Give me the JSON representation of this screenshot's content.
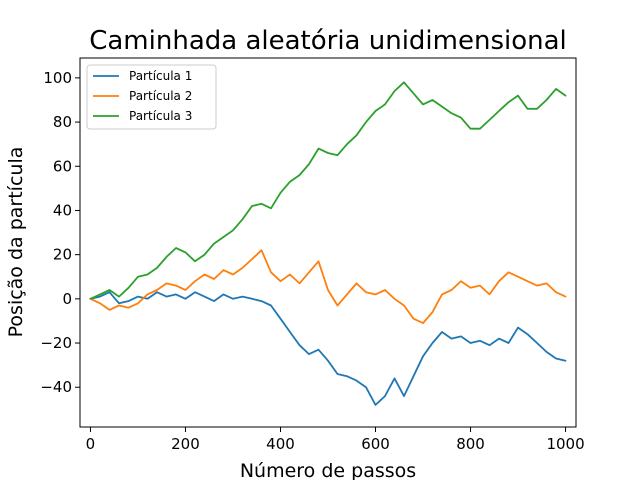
{
  "chart_data": {
    "type": "line",
    "title": "Caminhada aleatória unidimensional",
    "xlabel": "Número de passos",
    "ylabel": "Posição da partícula",
    "xlim": [
      -22,
      1022
    ],
    "ylim": [
      -58,
      109
    ],
    "xticks": [
      0,
      200,
      400,
      600,
      800,
      1000
    ],
    "xtick_labels": [
      "0",
      "200",
      "400",
      "600",
      "800",
      "1000"
    ],
    "yticks": [
      -40,
      -20,
      0,
      20,
      40,
      60,
      80,
      100
    ],
    "ytick_labels": [
      "−40",
      "−20",
      "0",
      "20",
      "40",
      "60",
      "80",
      "100"
    ],
    "grid": false,
    "legend_position": "upper-left",
    "series": [
      {
        "name": "Partícula 1",
        "color": "#1f77b4",
        "x": [
          0,
          20,
          40,
          60,
          80,
          100,
          120,
          140,
          160,
          180,
          200,
          220,
          240,
          260,
          280,
          300,
          320,
          340,
          360,
          380,
          400,
          420,
          440,
          460,
          480,
          500,
          520,
          540,
          560,
          580,
          600,
          620,
          640,
          660,
          680,
          700,
          720,
          740,
          760,
          780,
          800,
          820,
          840,
          860,
          880,
          900,
          920,
          940,
          960,
          980,
          1000
        ],
        "y": [
          0,
          1,
          3,
          -2,
          -1,
          1,
          0,
          3,
          1,
          2,
          0,
          3,
          1,
          -1,
          2,
          0,
          1,
          0,
          -1,
          -3,
          -9,
          -15,
          -21,
          -25,
          -23,
          -28,
          -34,
          -35,
          -37,
          -40,
          -48,
          -44,
          -36,
          -44,
          -35,
          -26,
          -20,
          -15,
          -18,
          -17,
          -20,
          -19,
          -21,
          -18,
          -20,
          -13,
          -16,
          -20,
          -24,
          -27,
          -28
        ]
      },
      {
        "name": "Partícula 2",
        "color": "#ff7f0e",
        "x": [
          0,
          20,
          40,
          60,
          80,
          100,
          120,
          140,
          160,
          180,
          200,
          220,
          240,
          260,
          280,
          300,
          320,
          340,
          360,
          380,
          400,
          420,
          440,
          460,
          480,
          500,
          520,
          540,
          560,
          580,
          600,
          620,
          640,
          660,
          680,
          700,
          720,
          740,
          760,
          780,
          800,
          820,
          840,
          860,
          880,
          900,
          920,
          940,
          960,
          980,
          1000
        ],
        "y": [
          0,
          -2,
          -5,
          -3,
          -4,
          -2,
          2,
          4,
          7,
          6,
          4,
          8,
          11,
          9,
          13,
          11,
          14,
          18,
          22,
          12,
          8,
          11,
          7,
          12,
          17,
          4,
          -3,
          2,
          7,
          3,
          2,
          4,
          0,
          -3,
          -9,
          -11,
          -6,
          2,
          4,
          8,
          5,
          6,
          2,
          8,
          12,
          10,
          8,
          6,
          7,
          3,
          1
        ]
      },
      {
        "name": "Partícula 3",
        "color": "#2ca02c",
        "x": [
          0,
          20,
          40,
          60,
          80,
          100,
          120,
          140,
          160,
          180,
          200,
          220,
          240,
          260,
          280,
          300,
          320,
          340,
          360,
          380,
          400,
          420,
          440,
          460,
          480,
          500,
          520,
          540,
          560,
          580,
          600,
          620,
          640,
          660,
          680,
          700,
          720,
          740,
          760,
          780,
          800,
          820,
          840,
          860,
          880,
          900,
          920,
          940,
          960,
          980,
          1000
        ],
        "y": [
          0,
          2,
          4,
          1,
          5,
          10,
          11,
          14,
          19,
          23,
          21,
          17,
          20,
          25,
          28,
          31,
          36,
          42,
          43,
          41,
          48,
          53,
          56,
          61,
          68,
          66,
          65,
          70,
          74,
          80,
          85,
          88,
          94,
          98,
          93,
          88,
          90,
          87,
          84,
          82,
          77,
          77,
          81,
          85,
          89,
          92,
          86,
          86,
          90,
          95,
          92
        ]
      }
    ]
  }
}
